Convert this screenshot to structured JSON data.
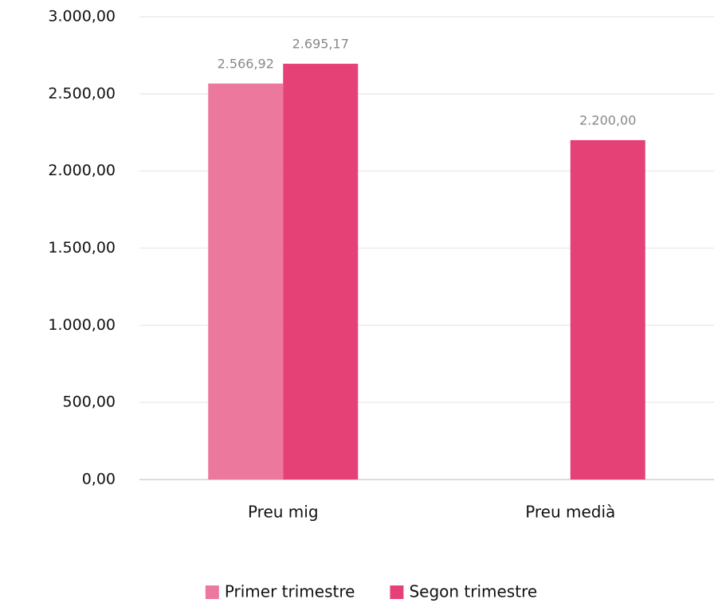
{
  "chart_data": {
    "type": "bar",
    "categories": [
      "Preu mig",
      "Preu medià"
    ],
    "series": [
      {
        "name": "Primer trimestre",
        "color": "#ec789d",
        "values": [
          2566.92,
          null
        ],
        "value_labels": [
          "2.566,92",
          null
        ]
      },
      {
        "name": "Segon trimestre",
        "color": "#e64177",
        "values": [
          2695.17,
          2200
        ],
        "value_labels": [
          "2.695,17",
          "2.200,00"
        ]
      }
    ],
    "ylim": [
      0,
      3000
    ],
    "yticks": [
      {
        "value": 0,
        "label": "0,00"
      },
      {
        "value": 500,
        "label": "500,00"
      },
      {
        "value": 1000,
        "label": "1.000,00"
      },
      {
        "value": 1500,
        "label": "1.500,00"
      },
      {
        "value": 2000,
        "label": "2.000,00"
      },
      {
        "value": 2500,
        "label": "2.500,00"
      },
      {
        "value": 3000,
        "label": "3.000,00"
      }
    ],
    "grid": true,
    "legend": "bottom"
  }
}
